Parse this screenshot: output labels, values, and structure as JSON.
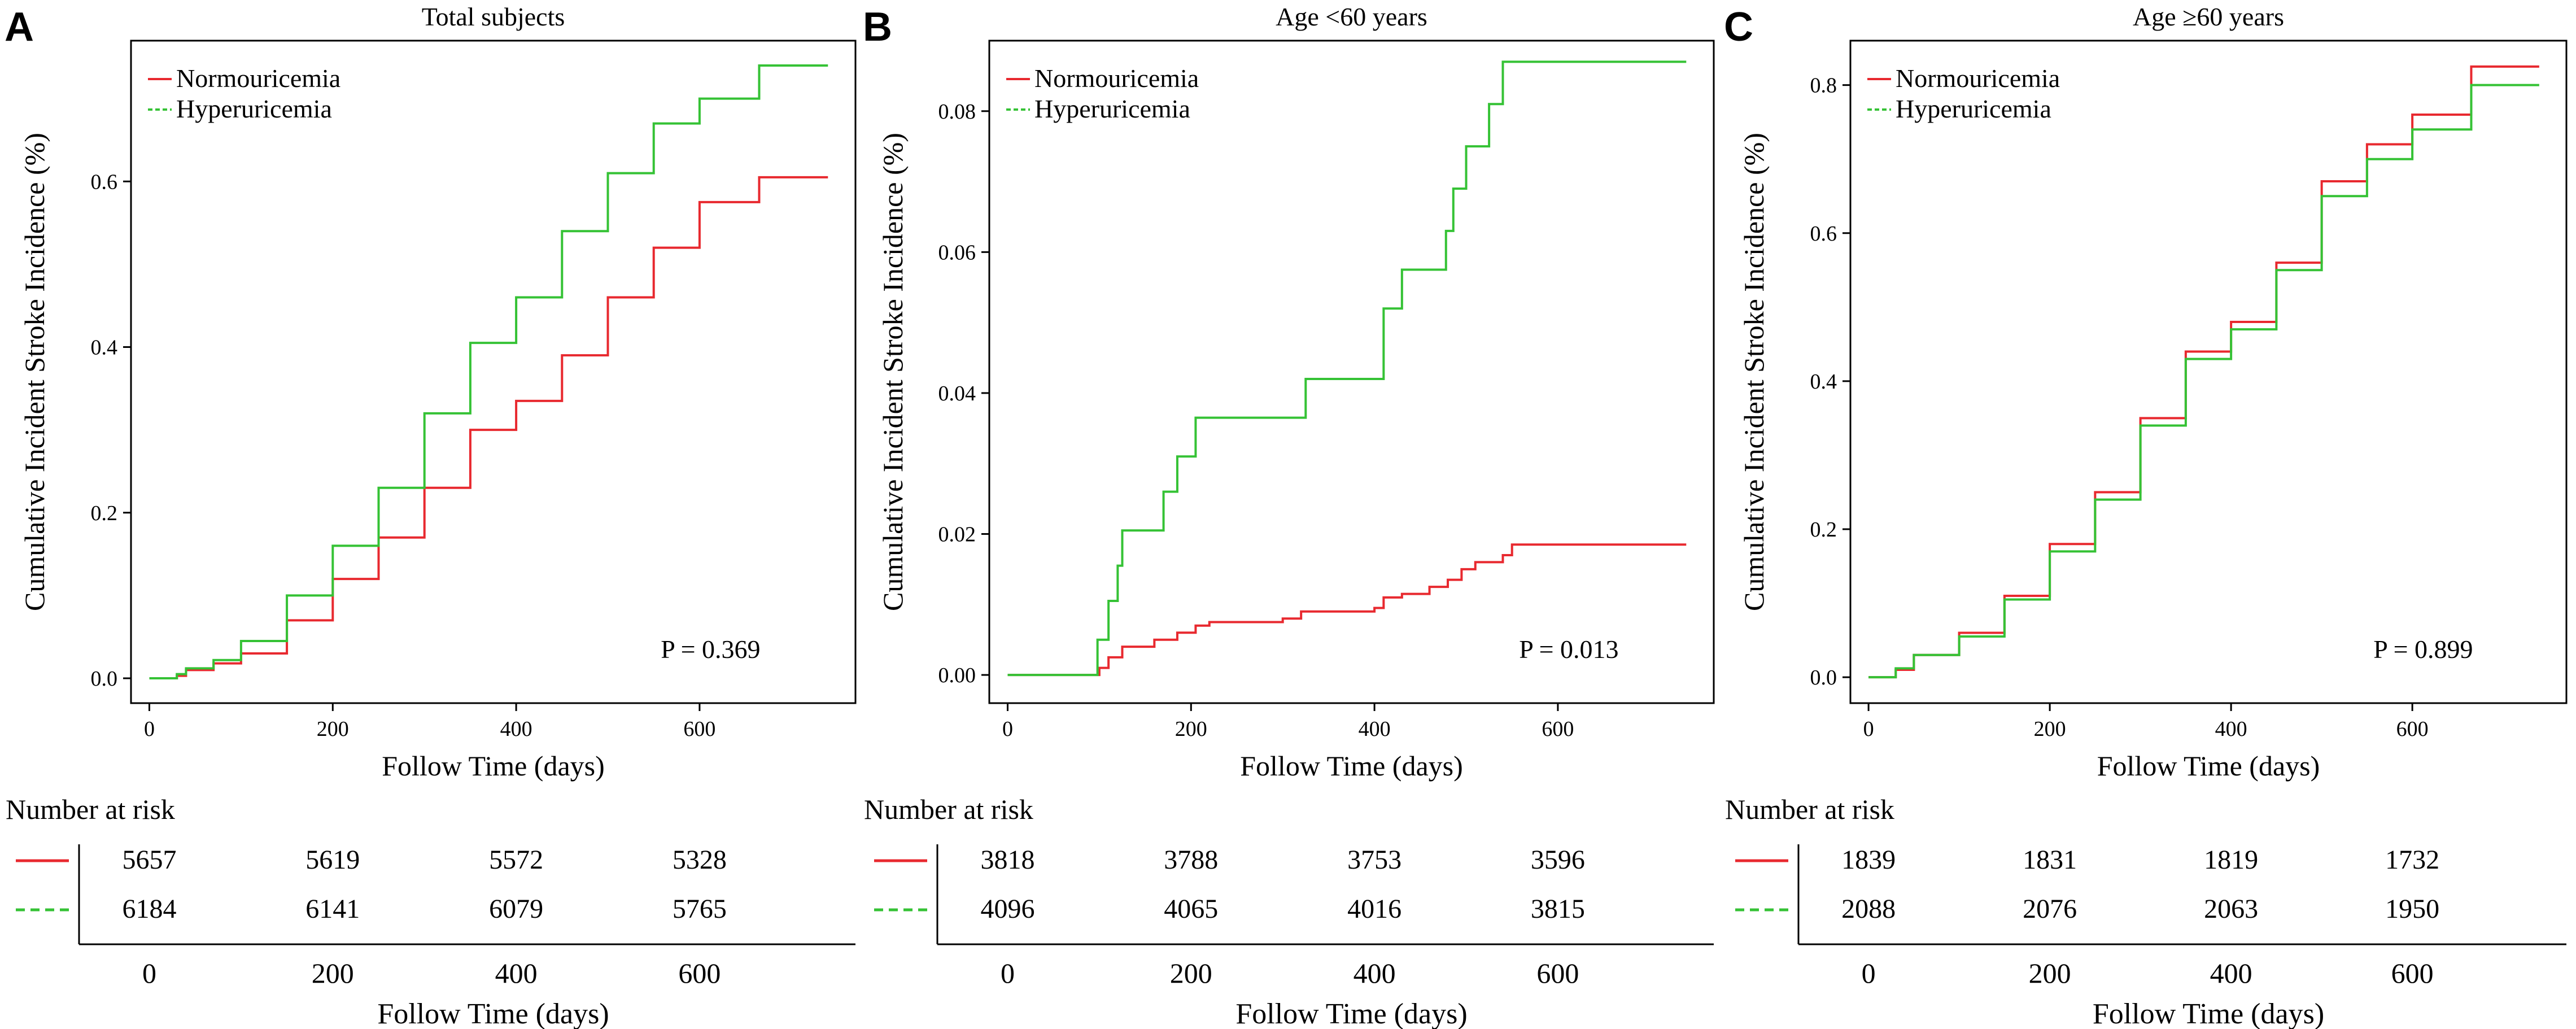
{
  "colors": {
    "normo": "#e8292f",
    "hyper": "#35c235",
    "axis": "#000000"
  },
  "chart_data": [
    {
      "type": "line",
      "panel_label": "A",
      "title": "Total subjects",
      "xlabel": "Follow Time (days)",
      "ylabel": "Cumulative Incident Stroke Incidence (%)",
      "xlim": [
        -20,
        770
      ],
      "ylim": [
        -0.03,
        0.77
      ],
      "x_ticks": [
        0,
        200,
        400,
        600
      ],
      "x_tick_labels": [
        "0",
        "200",
        "400",
        "600"
      ],
      "y_ticks": [
        0.0,
        0.2,
        0.4,
        0.6
      ],
      "y_tick_labels": [
        "0.0",
        "0.2",
        "0.4",
        "0.6"
      ],
      "p_value": "P = 0.369",
      "legend": [
        "Normouricemia",
        "Hyperuricemia"
      ],
      "series": [
        {
          "name": "Normouricemia",
          "color_key": "normo",
          "dash": "solid",
          "points": [
            [
              0,
              0
            ],
            [
              30,
              0.003
            ],
            [
              40,
              0.01
            ],
            [
              70,
              0.018
            ],
            [
              100,
              0.03
            ],
            [
              150,
              0.07
            ],
            [
              200,
              0.12
            ],
            [
              250,
              0.17
            ],
            [
              300,
              0.23
            ],
            [
              350,
              0.3
            ],
            [
              400,
              0.335
            ],
            [
              450,
              0.39
            ],
            [
              500,
              0.46
            ],
            [
              550,
              0.52
            ],
            [
              600,
              0.575
            ],
            [
              665,
              0.578
            ],
            [
              665,
              0.605
            ],
            [
              740,
              0.605
            ]
          ]
        },
        {
          "name": "Hyperuricemia",
          "color_key": "hyper",
          "dash": "dashed",
          "points": [
            [
              0,
              0
            ],
            [
              30,
              0.005
            ],
            [
              40,
              0.012
            ],
            [
              70,
              0.022
            ],
            [
              100,
              0.045
            ],
            [
              150,
              0.1
            ],
            [
              200,
              0.16
            ],
            [
              250,
              0.23
            ],
            [
              300,
              0.32
            ],
            [
              350,
              0.405
            ],
            [
              400,
              0.46
            ],
            [
              450,
              0.54
            ],
            [
              500,
              0.61
            ],
            [
              550,
              0.67
            ],
            [
              600,
              0.7
            ],
            [
              665,
              0.7
            ],
            [
              665,
              0.74
            ],
            [
              740,
              0.74
            ]
          ]
        }
      ],
      "risk_table": {
        "header": "Number at risk",
        "x_values": [
          0,
          200,
          400,
          600
        ],
        "x_tick_labels": [
          "0",
          "200",
          "400",
          "600"
        ],
        "xlabel": "Follow Time (days)",
        "rows": [
          {
            "name": "Normouricemia",
            "color_key": "normo",
            "dash": "solid",
            "values": [
              "5657",
              "5619",
              "5572",
              "5328"
            ]
          },
          {
            "name": "Hyperuricemia",
            "color_key": "hyper",
            "dash": "dashed",
            "values": [
              "6184",
              "6141",
              "6079",
              "5765"
            ]
          }
        ]
      }
    },
    {
      "type": "line",
      "panel_label": "B",
      "title": "Age <60 years",
      "xlabel": "Follow Time (days)",
      "ylabel": "Cumulative Incident Stroke Incidence (%)",
      "xlim": [
        -20,
        770
      ],
      "ylim": [
        -0.004,
        0.09
      ],
      "x_ticks": [
        0,
        200,
        400,
        600
      ],
      "x_tick_labels": [
        "0",
        "200",
        "400",
        "600"
      ],
      "y_ticks": [
        0.0,
        0.02,
        0.04,
        0.06,
        0.08
      ],
      "y_tick_labels": [
        "0.00",
        "0.02",
        "0.04",
        "0.06",
        "0.08"
      ],
      "p_value": "P = 0.013",
      "legend": [
        "Normouricemia",
        "Hyperuricemia"
      ],
      "series": [
        {
          "name": "Normouricemia",
          "color_key": "normo",
          "dash": "solid",
          "points": [
            [
              0,
              0
            ],
            [
              95,
              0
            ],
            [
              100,
              0.001
            ],
            [
              110,
              0.0025
            ],
            [
              125,
              0.004
            ],
            [
              160,
              0.005
            ],
            [
              185,
              0.006
            ],
            [
              205,
              0.007
            ],
            [
              220,
              0.0075
            ],
            [
              300,
              0.008
            ],
            [
              320,
              0.009
            ],
            [
              400,
              0.0095
            ],
            [
              410,
              0.011
            ],
            [
              430,
              0.0115
            ],
            [
              460,
              0.0125
            ],
            [
              480,
              0.0135
            ],
            [
              495,
              0.015
            ],
            [
              510,
              0.016
            ],
            [
              540,
              0.017
            ],
            [
              550,
              0.0185
            ],
            [
              740,
              0.0185
            ]
          ]
        },
        {
          "name": "Hyperuricemia",
          "color_key": "hyper",
          "dash": "dashed",
          "points": [
            [
              0,
              0
            ],
            [
              95,
              0
            ],
            [
              98,
              0.005
            ],
            [
              110,
              0.0105
            ],
            [
              120,
              0.0155
            ],
            [
              125,
              0.0205
            ],
            [
              170,
              0.026
            ],
            [
              185,
              0.031
            ],
            [
              205,
              0.0365
            ],
            [
              320,
              0.0365
            ],
            [
              325,
              0.042
            ],
            [
              405,
              0.042
            ],
            [
              410,
              0.052
            ],
            [
              430,
              0.0575
            ],
            [
              470,
              0.0575
            ],
            [
              478,
              0.063
            ],
            [
              486,
              0.069
            ],
            [
              500,
              0.075
            ],
            [
              525,
              0.081
            ],
            [
              540,
              0.087
            ],
            [
              740,
              0.087
            ]
          ]
        }
      ],
      "risk_table": {
        "header": "Number at risk",
        "x_values": [
          0,
          200,
          400,
          600
        ],
        "x_tick_labels": [
          "0",
          "200",
          "400",
          "600"
        ],
        "xlabel": "Follow Time (days)",
        "rows": [
          {
            "name": "Normouricemia",
            "color_key": "normo",
            "dash": "solid",
            "values": [
              "3818",
              "3788",
              "3753",
              "3596"
            ]
          },
          {
            "name": "Hyperuricemia",
            "color_key": "hyper",
            "dash": "dashed",
            "values": [
              "4096",
              "4065",
              "4016",
              "3815"
            ]
          }
        ]
      }
    },
    {
      "type": "line",
      "panel_label": "C",
      "title": "Age ≥60 years",
      "xlabel": "Follow Time (days)",
      "ylabel": "Cumulative Incident Stroke Incidence (%)",
      "xlim": [
        -20,
        770
      ],
      "ylim": [
        -0.035,
        0.86
      ],
      "x_ticks": [
        0,
        200,
        400,
        600
      ],
      "x_tick_labels": [
        "0",
        "200",
        "400",
        "600"
      ],
      "y_ticks": [
        0.0,
        0.2,
        0.4,
        0.6,
        0.8
      ],
      "y_tick_labels": [
        "0.0",
        "0.2",
        "0.4",
        "0.6",
        "0.8"
      ],
      "p_value": "P = 0.899",
      "legend": [
        "Normouricemia",
        "Hyperuricemia"
      ],
      "series": [
        {
          "name": "Normouricemia",
          "color_key": "normo",
          "dash": "solid",
          "points": [
            [
              0,
              0
            ],
            [
              30,
              0.01
            ],
            [
              50,
              0.03
            ],
            [
              100,
              0.06
            ],
            [
              150,
              0.11
            ],
            [
              200,
              0.18
            ],
            [
              250,
              0.25
            ],
            [
              300,
              0.35
            ],
            [
              350,
              0.44
            ],
            [
              400,
              0.48
            ],
            [
              450,
              0.56
            ],
            [
              500,
              0.67
            ],
            [
              550,
              0.72
            ],
            [
              600,
              0.76
            ],
            [
              665,
              0.78
            ],
            [
              665,
              0.825
            ],
            [
              740,
              0.825
            ]
          ]
        },
        {
          "name": "Hyperuricemia",
          "color_key": "hyper",
          "dash": "dashed",
          "points": [
            [
              0,
              0
            ],
            [
              30,
              0.012
            ],
            [
              50,
              0.03
            ],
            [
              100,
              0.055
            ],
            [
              150,
              0.105
            ],
            [
              200,
              0.17
            ],
            [
              250,
              0.24
            ],
            [
              300,
              0.34
            ],
            [
              350,
              0.43
            ],
            [
              400,
              0.47
            ],
            [
              450,
              0.55
            ],
            [
              500,
              0.65
            ],
            [
              550,
              0.7
            ],
            [
              600,
              0.74
            ],
            [
              665,
              0.75
            ],
            [
              665,
              0.8
            ],
            [
              740,
              0.8
            ]
          ]
        }
      ],
      "risk_table": {
        "header": "Number at risk",
        "x_values": [
          0,
          200,
          400,
          600
        ],
        "x_tick_labels": [
          "0",
          "200",
          "400",
          "600"
        ],
        "xlabel": "Follow Time (days)",
        "rows": [
          {
            "name": "Normouricemia",
            "color_key": "normo",
            "dash": "solid",
            "values": [
              "1839",
              "1831",
              "1819",
              "1732"
            ]
          },
          {
            "name": "Hyperuricemia",
            "color_key": "hyper",
            "dash": "dashed",
            "values": [
              "2088",
              "2076",
              "2063",
              "1950"
            ]
          }
        ]
      }
    }
  ]
}
